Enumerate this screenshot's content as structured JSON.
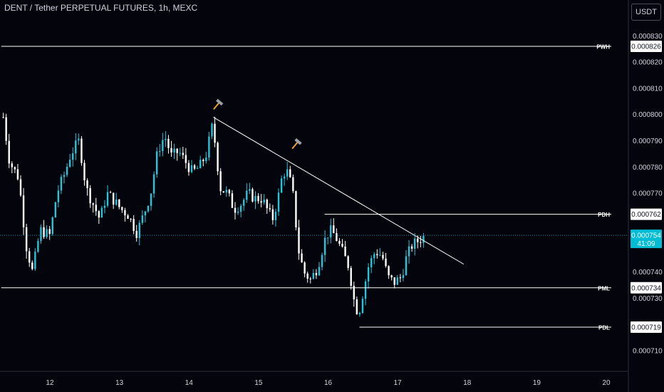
{
  "header": {
    "title": "DENT / Tether PERPETUAL FUTURES, 1h, MEXC",
    "currency_button": "USDT"
  },
  "countdown": "41:09",
  "colors": {
    "background": "#04040d",
    "bull": "#26c6da",
    "bear": "#ffffff",
    "price_badge": "#00bcd4",
    "axis_text": "#d1d4dc",
    "hammer": "#f0a030"
  },
  "chart_data": {
    "type": "candlestick",
    "x_ticks": [
      "12",
      "13",
      "14",
      "15",
      "16",
      "17",
      "18",
      "19",
      "20"
    ],
    "y_ticks": [
      "0.000710",
      "0.000730",
      "0.000740",
      "0.000770",
      "0.000780",
      "0.000790",
      "0.000800",
      "0.000810",
      "0.000820",
      "0.000830"
    ],
    "ylim": [
      0.000706,
      0.000833
    ],
    "last_price": {
      "value": 0.000754,
      "label": "0.000754"
    },
    "levels": [
      {
        "name": "PWH",
        "label": "0.000826",
        "value": 0.000826,
        "from_day": 11.3
      },
      {
        "name": "PDH",
        "label": "0.000762",
        "value": 0.000762,
        "from_day": 15.95
      },
      {
        "name": "PML",
        "label": "0.000734",
        "value": 0.000734,
        "from_day": 11.3
      },
      {
        "name": "PDL",
        "label": "0.000719",
        "value": 0.000719,
        "from_day": 16.45
      }
    ],
    "trendline": {
      "start": {
        "day": 14.35,
        "price": 0.000799
      },
      "end": {
        "day": 17.95,
        "price": 0.000743
      }
    },
    "markers": [
      {
        "icon": "hammer-icon",
        "day": 14.42,
        "price": 0.000803
      },
      {
        "icon": "hammer-icon",
        "day": 15.55,
        "price": 0.000788
      }
    ],
    "price_path": [
      [
        11.33,
        0.000799
      ],
      [
        11.42,
        0.000782
      ],
      [
        11.55,
        0.000776
      ],
      [
        11.66,
        0.00075
      ],
      [
        11.75,
        0.00074
      ],
      [
        11.86,
        0.000756
      ],
      [
        12.0,
        0.000754
      ],
      [
        12.1,
        0.00077
      ],
      [
        12.22,
        0.000778
      ],
      [
        12.3,
        0.000785
      ],
      [
        12.42,
        0.00079
      ],
      [
        12.52,
        0.000772
      ],
      [
        12.62,
        0.000766
      ],
      [
        12.72,
        0.00076
      ],
      [
        12.82,
        0.00077
      ],
      [
        12.9,
        0.000768
      ],
      [
        13.02,
        0.000764
      ],
      [
        13.12,
        0.000762
      ],
      [
        13.25,
        0.000755
      ],
      [
        13.35,
        0.000762
      ],
      [
        13.45,
        0.00077
      ],
      [
        13.55,
        0.000786
      ],
      [
        13.65,
        0.000792
      ],
      [
        13.75,
        0.000784
      ],
      [
        13.85,
        0.000786
      ],
      [
        13.95,
        0.000782
      ],
      [
        14.05,
        0.000778
      ],
      [
        14.15,
        0.00078
      ],
      [
        14.25,
        0.000785
      ],
      [
        14.33,
        0.000795
      ],
      [
        14.37,
        0.00079
      ],
      [
        14.45,
        0.000772
      ],
      [
        14.55,
        0.00077
      ],
      [
        14.65,
        0.000764
      ],
      [
        14.75,
        0.000766
      ],
      [
        14.85,
        0.00077
      ],
      [
        14.95,
        0.000768
      ],
      [
        15.05,
        0.000768
      ],
      [
        15.12,
        0.000764
      ],
      [
        15.2,
        0.00076
      ],
      [
        15.28,
        0.000768
      ],
      [
        15.35,
        0.000778
      ],
      [
        15.42,
        0.000778
      ],
      [
        15.48,
        0.000772
      ],
      [
        15.52,
        0.000765
      ],
      [
        15.56,
        0.00075
      ],
      [
        15.65,
        0.00074
      ],
      [
        15.75,
        0.000737
      ],
      [
        15.85,
        0.000742
      ],
      [
        15.95,
        0.000752
      ],
      [
        16.02,
        0.000756
      ],
      [
        16.1,
        0.000754
      ],
      [
        16.2,
        0.000748
      ],
      [
        16.3,
        0.000742
      ],
      [
        16.38,
        0.000728
      ],
      [
        16.44,
        0.000724
      ],
      [
        16.5,
        0.000732
      ],
      [
        16.58,
        0.000742
      ],
      [
        16.68,
        0.000748
      ],
      [
        16.78,
        0.000746
      ],
      [
        16.86,
        0.000738
      ],
      [
        16.95,
        0.000736
      ],
      [
        17.05,
        0.000738
      ],
      [
        17.12,
        0.000745
      ],
      [
        17.2,
        0.00075
      ],
      [
        17.3,
        0.000752
      ],
      [
        17.4,
        0.000754
      ]
    ]
  }
}
